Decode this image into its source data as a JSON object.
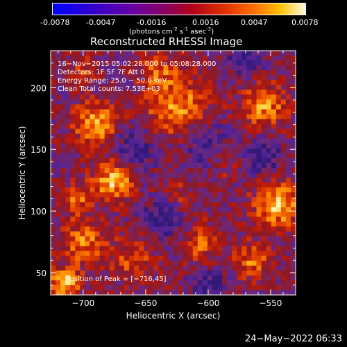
{
  "colorbar": {
    "ticks": [
      "-0.0078",
      "-0.0047",
      "-0.0016",
      "0.0016",
      "0.0047",
      "0.0078"
    ],
    "units_prefix": "(photons cm",
    "units_exp1": "-2",
    "units_mid": " s",
    "units_exp2": "-1",
    "units_mid2": " asec",
    "units_exp3": "-2",
    "units_suffix": ")"
  },
  "chart_data": {
    "type": "heatmap",
    "title": "Reconstructed RHESSI Image",
    "xlabel": "Heliocentric X (arcsec)",
    "ylabel": "Heliocentric Y (arcsec)",
    "xlim": [
      -726,
      -530
    ],
    "ylim": [
      32,
      230
    ],
    "x_ticks": [
      -700,
      -650,
      -600,
      -550
    ],
    "y_ticks": [
      50,
      100,
      150,
      200
    ],
    "x_tick_labels": [
      "−700",
      "−650",
      "−600",
      "−550"
    ],
    "y_tick_labels": [
      "50",
      "100",
      "150",
      "200"
    ],
    "colorbar_range": [
      -0.0078,
      0.0078
    ],
    "annotations": [
      "16−Nov−2015 05:02:28.000 to 05:08:28.000",
      "Detectors: 1F 5F  7F  Att 0",
      "Energy Range: 25.0 − 50.0 keV",
      "Clean     Total counts: 7.53E+03"
    ],
    "peak_label": "Position of Peak = [−716,45]",
    "peak": [
      -716,
      45
    ]
  },
  "footer": {
    "date": "24−May−2022 06:33"
  }
}
